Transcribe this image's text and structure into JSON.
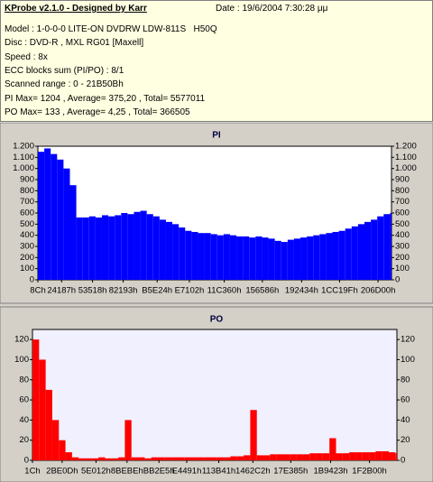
{
  "header": {
    "title": "KProbe v2.1.0 - Designed by Karr",
    "date": "Date : 19/6/2004 7:30:28 μμ",
    "lines": [
      "Model : 1-0-0-0 LITE-ON DVDRW LDW-811S   H50Q",
      "Disc : DVD-R , MXL RG01 [Maxell]",
      "Speed : 8x",
      "ECC blocks sum (PI/PO) : 8/1",
      "Scanned range : 0 - 21B50Bh",
      "PI Max= 1204 , Average= 375,20 , Total= 5577011",
      "PO Max= 133 , Average= 4,25 , Total= 366505"
    ]
  },
  "chart_data": [
    {
      "type": "bar",
      "title": "PI",
      "color": "#0000ff",
      "x": [
        0,
        40000,
        80000,
        120000,
        160000,
        200000,
        240000,
        280000,
        320000,
        360000,
        400000,
        440000,
        480000,
        520000,
        560000,
        600000,
        640000,
        680000,
        720000,
        760000,
        800000,
        840000,
        880000,
        920000,
        960000,
        1000000,
        1040000,
        1080000,
        1120000,
        1160000,
        1200000,
        1240000,
        1280000,
        1320000,
        1360000,
        1400000,
        1440000,
        1480000,
        1520000,
        1560000,
        1600000,
        1640000,
        1680000,
        1720000,
        1760000,
        1800000,
        1840000,
        1880000,
        1920000,
        1960000,
        2000000,
        2040000,
        2080000,
        2120000,
        2160000,
        2200000
      ],
      "values": [
        1150,
        1180,
        1130,
        1080,
        1000,
        850,
        560,
        560,
        570,
        560,
        580,
        570,
        580,
        600,
        590,
        610,
        620,
        590,
        570,
        540,
        520,
        500,
        470,
        440,
        430,
        420,
        420,
        410,
        400,
        410,
        400,
        390,
        390,
        380,
        390,
        380,
        370,
        350,
        340,
        360,
        370,
        380,
        390,
        400,
        410,
        420,
        430,
        440,
        460,
        480,
        500,
        520,
        540,
        570,
        590,
        600
      ],
      "xlim": [
        0,
        2209035
      ],
      "xticks": [
        {
          "value": 140,
          "label": "8Ch"
        },
        {
          "value": 147847,
          "label": "24187h"
        },
        {
          "value": 341272,
          "label": "53518h"
        },
        {
          "value": 532883,
          "label": "82193h"
        },
        {
          "value": 744996,
          "label": "B5E24h"
        },
        {
          "value": 946434,
          "label": "E7102h"
        },
        {
          "value": 1164128,
          "label": "11C360h"
        },
        {
          "value": 1402246,
          "label": "156586h"
        },
        {
          "value": 1647668,
          "label": "192434h"
        },
        {
          "value": 1884575,
          "label": "1CC19Fh"
        },
        {
          "value": 2125056,
          "label": "206D00h"
        }
      ],
      "ylim": [
        0,
        1200
      ],
      "yticks": [
        0,
        100,
        200,
        300,
        400,
        500,
        600,
        700,
        800,
        900,
        {
          "value": 1000,
          "label": "1.000"
        },
        {
          "value": 1100,
          "label": "1.100"
        },
        {
          "value": 1200,
          "label": "1.200"
        }
      ]
    },
    {
      "type": "bar",
      "title": "PO",
      "color": "#ff0000",
      "x": [
        0,
        40000,
        80000,
        120000,
        160000,
        200000,
        240000,
        280000,
        320000,
        360000,
        400000,
        440000,
        480000,
        520000,
        560000,
        600000,
        640000,
        680000,
        720000,
        760000,
        800000,
        840000,
        880000,
        920000,
        960000,
        1000000,
        1040000,
        1080000,
        1120000,
        1160000,
        1200000,
        1240000,
        1280000,
        1320000,
        1360000,
        1400000,
        1440000,
        1480000,
        1520000,
        1560000,
        1600000,
        1640000,
        1680000,
        1720000,
        1760000,
        1800000,
        1840000,
        1880000,
        1920000,
        1960000,
        2000000,
        2040000,
        2080000,
        2120000,
        2160000,
        2200000
      ],
      "values": [
        120,
        100,
        70,
        40,
        20,
        8,
        3,
        2,
        2,
        2,
        3,
        2,
        2,
        3,
        40,
        3,
        3,
        2,
        3,
        3,
        3,
        3,
        3,
        3,
        3,
        3,
        3,
        3,
        3,
        3,
        4,
        4,
        5,
        50,
        5,
        5,
        6,
        6,
        6,
        6,
        6,
        6,
        7,
        7,
        7,
        22,
        7,
        7,
        8,
        8,
        8,
        8,
        9,
        9,
        8,
        7
      ],
      "xlim": [
        0,
        2209035
      ],
      "xticks": [
        {
          "value": 28,
          "label": "1Ch"
        },
        {
          "value": 179725,
          "label": "2BE0Dh"
        },
        {
          "value": 385042,
          "label": "5E012h"
        },
        {
          "value": 573118,
          "label": "8BEBEh"
        },
        {
          "value": 766693,
          "label": "BB2E5h"
        },
        {
          "value": 935057,
          "label": "E4491h"
        },
        {
          "value": 1129281,
          "label": "113B41h"
        },
        {
          "value": 1336002,
          "label": "1462C2h"
        },
        {
          "value": 1565573,
          "label": "17E385h"
        },
        {
          "value": 1807395,
          "label": "1B9423h"
        },
        {
          "value": 2042624,
          "label": "1F2B00h"
        }
      ],
      "ylim": [
        0,
        130
      ],
      "yticks": [
        0,
        20,
        40,
        60,
        80,
        100,
        120
      ]
    }
  ]
}
